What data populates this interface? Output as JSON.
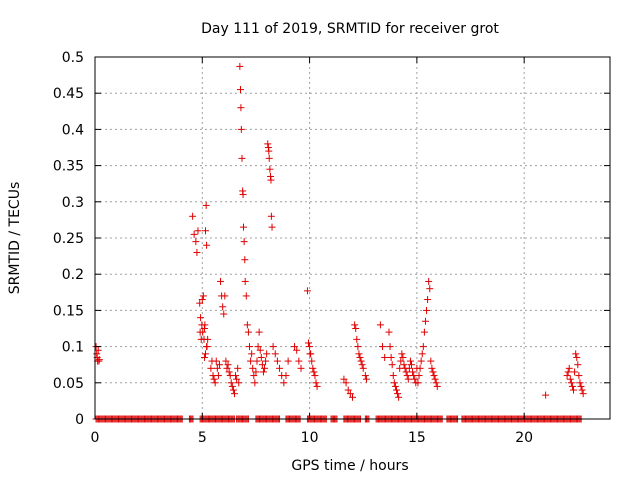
{
  "chart_data": {
    "type": "scatter",
    "title": "Day 111 of 2019, SRMTID for receiver grot",
    "xlabel": "GPS time / hours",
    "ylabel": "SRMTID / TECUs",
    "xlim": [
      0,
      24
    ],
    "ylim": [
      0,
      0.5
    ],
    "xticks": [
      0,
      5,
      10,
      15,
      20
    ],
    "xtick_labels": [
      "0",
      "5",
      "10",
      "15",
      "20"
    ],
    "yticks": [
      0,
      0.05,
      0.1,
      0.15,
      0.2,
      0.25,
      0.3,
      0.35,
      0.4,
      0.45,
      0.5
    ],
    "ytick_labels": [
      "0",
      "0.05",
      "0.1",
      "0.15",
      "0.2",
      "0.25",
      "0.3",
      "0.35",
      "0.4",
      "0.45",
      "0.5"
    ],
    "grid": true,
    "marker": "+",
    "color": "#e00000",
    "baseline_ranges": [
      [
        0.05,
        4.1
      ],
      [
        4.4,
        4.6
      ],
      [
        4.9,
        6.5
      ],
      [
        6.6,
        7.2
      ],
      [
        7.5,
        8.6
      ],
      [
        8.9,
        9.6
      ],
      [
        9.9,
        10.8
      ],
      [
        11.0,
        11.3
      ],
      [
        11.6,
        12.4
      ],
      [
        12.6,
        12.8
      ],
      [
        13.1,
        16.2
      ],
      [
        16.4,
        16.9
      ],
      [
        17.1,
        22.7
      ]
    ],
    "series": [
      {
        "x": [
          0.05,
          0.08,
          0.1,
          0.12,
          0.15,
          0.18,
          0.2,
          4.55,
          4.62,
          4.7,
          4.75,
          4.8,
          4.88,
          4.9,
          4.92,
          4.95,
          4.98,
          5.0,
          5.02,
          5.05,
          5.08,
          5.1,
          5.12,
          5.15,
          5.18,
          5.2,
          5.22,
          5.25,
          5.1,
          5.15,
          5.2,
          5.4,
          5.45,
          5.5,
          5.55,
          5.6,
          5.65,
          5.7,
          5.75,
          5.8,
          5.85,
          5.9,
          5.95,
          6.0,
          6.05,
          6.1,
          6.15,
          6.2,
          6.25,
          6.3,
          6.35,
          6.4,
          6.45,
          6.5,
          6.55,
          6.6,
          6.65,
          6.7,
          6.75,
          6.78,
          6.8,
          6.82,
          6.85,
          6.88,
          6.9,
          6.92,
          6.95,
          6.98,
          7.0,
          7.05,
          7.1,
          7.15,
          7.2,
          7.25,
          7.3,
          7.35,
          7.4,
          7.45,
          7.5,
          7.55,
          7.6,
          7.65,
          7.7,
          7.75,
          7.8,
          7.85,
          7.9,
          7.95,
          8.0,
          8.05,
          8.08,
          8.1,
          8.12,
          8.15,
          8.18,
          8.2,
          8.22,
          8.25,
          8.3,
          8.4,
          8.5,
          8.6,
          8.7,
          8.8,
          8.9,
          9.0,
          9.3,
          9.4,
          9.5,
          9.6,
          9.9,
          9.95,
          10.0,
          10.05,
          10.1,
          10.15,
          10.2,
          10.25,
          10.3,
          10.35,
          10.02,
          11.6,
          11.7,
          11.8,
          11.9,
          12.0,
          12.1,
          12.15,
          12.2,
          12.25,
          12.3,
          12.35,
          12.4,
          12.45,
          12.5,
          12.6,
          12.65,
          13.3,
          13.4,
          13.5,
          13.7,
          13.75,
          13.8,
          13.85,
          13.9,
          13.95,
          14.0,
          14.05,
          14.1,
          14.15,
          14.2,
          14.25,
          14.3,
          14.35,
          14.4,
          14.45,
          14.5,
          14.55,
          14.6,
          14.65,
          14.7,
          14.75,
          14.8,
          14.85,
          14.9,
          14.95,
          15.0,
          15.05,
          15.1,
          15.15,
          15.2,
          15.25,
          15.3,
          15.35,
          15.4,
          15.45,
          15.5,
          15.55,
          15.6,
          15.65,
          15.7,
          15.75,
          15.8,
          15.85,
          15.9,
          15.95,
          21.0,
          22.0,
          22.05,
          22.1,
          22.15,
          22.2,
          22.25,
          22.3,
          22.35,
          22.4,
          22.45,
          22.5,
          22.55,
          22.6,
          22.65,
          22.7,
          22.75
        ],
        "y": [
          0.1,
          0.09,
          0.085,
          0.08,
          0.095,
          0.08,
          0.082,
          0.28,
          0.255,
          0.245,
          0.23,
          0.26,
          0.16,
          0.12,
          0.14,
          0.11,
          0.13,
          0.165,
          0.12,
          0.17,
          0.11,
          0.125,
          0.13,
          0.26,
          0.295,
          0.24,
          0.1,
          0.11,
          0.085,
          0.09,
          0.1,
          0.07,
          0.08,
          0.06,
          0.055,
          0.05,
          0.08,
          0.07,
          0.06,
          0.075,
          0.19,
          0.17,
          0.155,
          0.145,
          0.17,
          0.08,
          0.07,
          0.075,
          0.065,
          0.06,
          0.05,
          0.045,
          0.04,
          0.035,
          0.06,
          0.055,
          0.07,
          0.05,
          0.487,
          0.455,
          0.43,
          0.4,
          0.36,
          0.315,
          0.31,
          0.265,
          0.245,
          0.22,
          0.19,
          0.17,
          0.13,
          0.12,
          0.1,
          0.08,
          0.09,
          0.07,
          0.06,
          0.05,
          0.065,
          0.08,
          0.1,
          0.12,
          0.095,
          0.085,
          0.075,
          0.065,
          0.07,
          0.08,
          0.09,
          0.38,
          0.375,
          0.37,
          0.36,
          0.345,
          0.335,
          0.33,
          0.28,
          0.265,
          0.1,
          0.09,
          0.08,
          0.07,
          0.06,
          0.05,
          0.06,
          0.08,
          0.1,
          0.095,
          0.08,
          0.07,
          0.177,
          0.105,
          0.1,
          0.09,
          0.08,
          0.07,
          0.065,
          0.06,
          0.05,
          0.045,
          0.09,
          0.055,
          0.05,
          0.04,
          0.035,
          0.03,
          0.13,
          0.125,
          0.11,
          0.1,
          0.09,
          0.085,
          0.08,
          0.075,
          0.07,
          0.06,
          0.055,
          0.13,
          0.1,
          0.085,
          0.12,
          0.1,
          0.085,
          0.075,
          0.06,
          0.05,
          0.045,
          0.04,
          0.035,
          0.03,
          0.07,
          0.08,
          0.09,
          0.085,
          0.075,
          0.07,
          0.065,
          0.06,
          0.055,
          0.07,
          0.08,
          0.075,
          0.065,
          0.06,
          0.055,
          0.05,
          0.07,
          0.05,
          0.06,
          0.07,
          0.08,
          0.09,
          0.1,
          0.12,
          0.135,
          0.15,
          0.165,
          0.19,
          0.18,
          0.08,
          0.07,
          0.065,
          0.06,
          0.055,
          0.05,
          0.045,
          0.033,
          0.06,
          0.065,
          0.07,
          0.055,
          0.05,
          0.045,
          0.04,
          0.065,
          0.09,
          0.085,
          0.075,
          0.06,
          0.05,
          0.045,
          0.04,
          0.035
        ]
      }
    ]
  }
}
